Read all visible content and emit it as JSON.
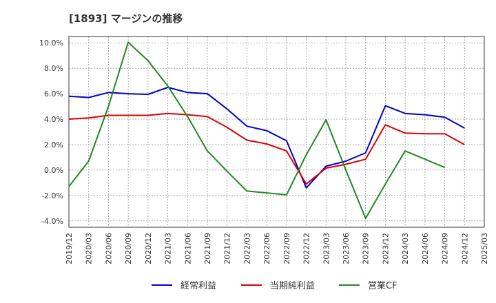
{
  "chart_data": {
    "type": "line",
    "title": "[1893]  マージンの推移",
    "x": [
      "2019/12",
      "2020/03",
      "2020/06",
      "2020/09",
      "2020/12",
      "2021/03",
      "2021/06",
      "2021/09",
      "2021/12",
      "2022/03",
      "2022/06",
      "2022/09",
      "2022/12",
      "2023/03",
      "2023/06",
      "2023/09",
      "2023/12",
      "2024/03",
      "2024/06",
      "2024/09",
      "2024/12",
      "2025/03"
    ],
    "ylim": [
      -4.5,
      10.5
    ],
    "yticks": [
      -4.0,
      -2.0,
      0.0,
      2.0,
      4.0,
      6.0,
      8.0,
      10.0
    ],
    "ytick_labels": [
      "-4.0%",
      "-2.0%",
      "0.0%",
      "2.0%",
      "4.0%",
      "6.0%",
      "8.0%",
      "10.0%"
    ],
    "grid": true,
    "legend_position": "bottom",
    "series": [
      {
        "name": "経常利益",
        "color": "#0000cc",
        "values": [
          5.8,
          5.7,
          6.1,
          6.0,
          5.95,
          6.5,
          6.1,
          6.0,
          4.8,
          3.45,
          3.1,
          2.3,
          -1.4,
          0.3,
          0.7,
          1.35,
          5.05,
          4.45,
          4.35,
          4.15,
          3.3,
          null
        ]
      },
      {
        "name": "当期純利益",
        "color": "#dd0000",
        "values": [
          4.0,
          4.1,
          4.3,
          4.3,
          4.3,
          4.45,
          4.35,
          4.2,
          3.35,
          2.35,
          2.05,
          1.5,
          -1.1,
          0.15,
          0.45,
          0.85,
          3.55,
          2.9,
          2.85,
          2.85,
          2.0,
          null
        ]
      },
      {
        "name": "営業CF",
        "color": "#228822",
        "values": [
          -1.3,
          0.7,
          5.0,
          10.05,
          8.6,
          6.6,
          4.2,
          1.5,
          -0.1,
          -1.65,
          -1.8,
          -1.95,
          1.2,
          3.95,
          0.0,
          -3.8,
          -1.1,
          1.5,
          0.85,
          0.2,
          null,
          null
        ]
      }
    ]
  }
}
